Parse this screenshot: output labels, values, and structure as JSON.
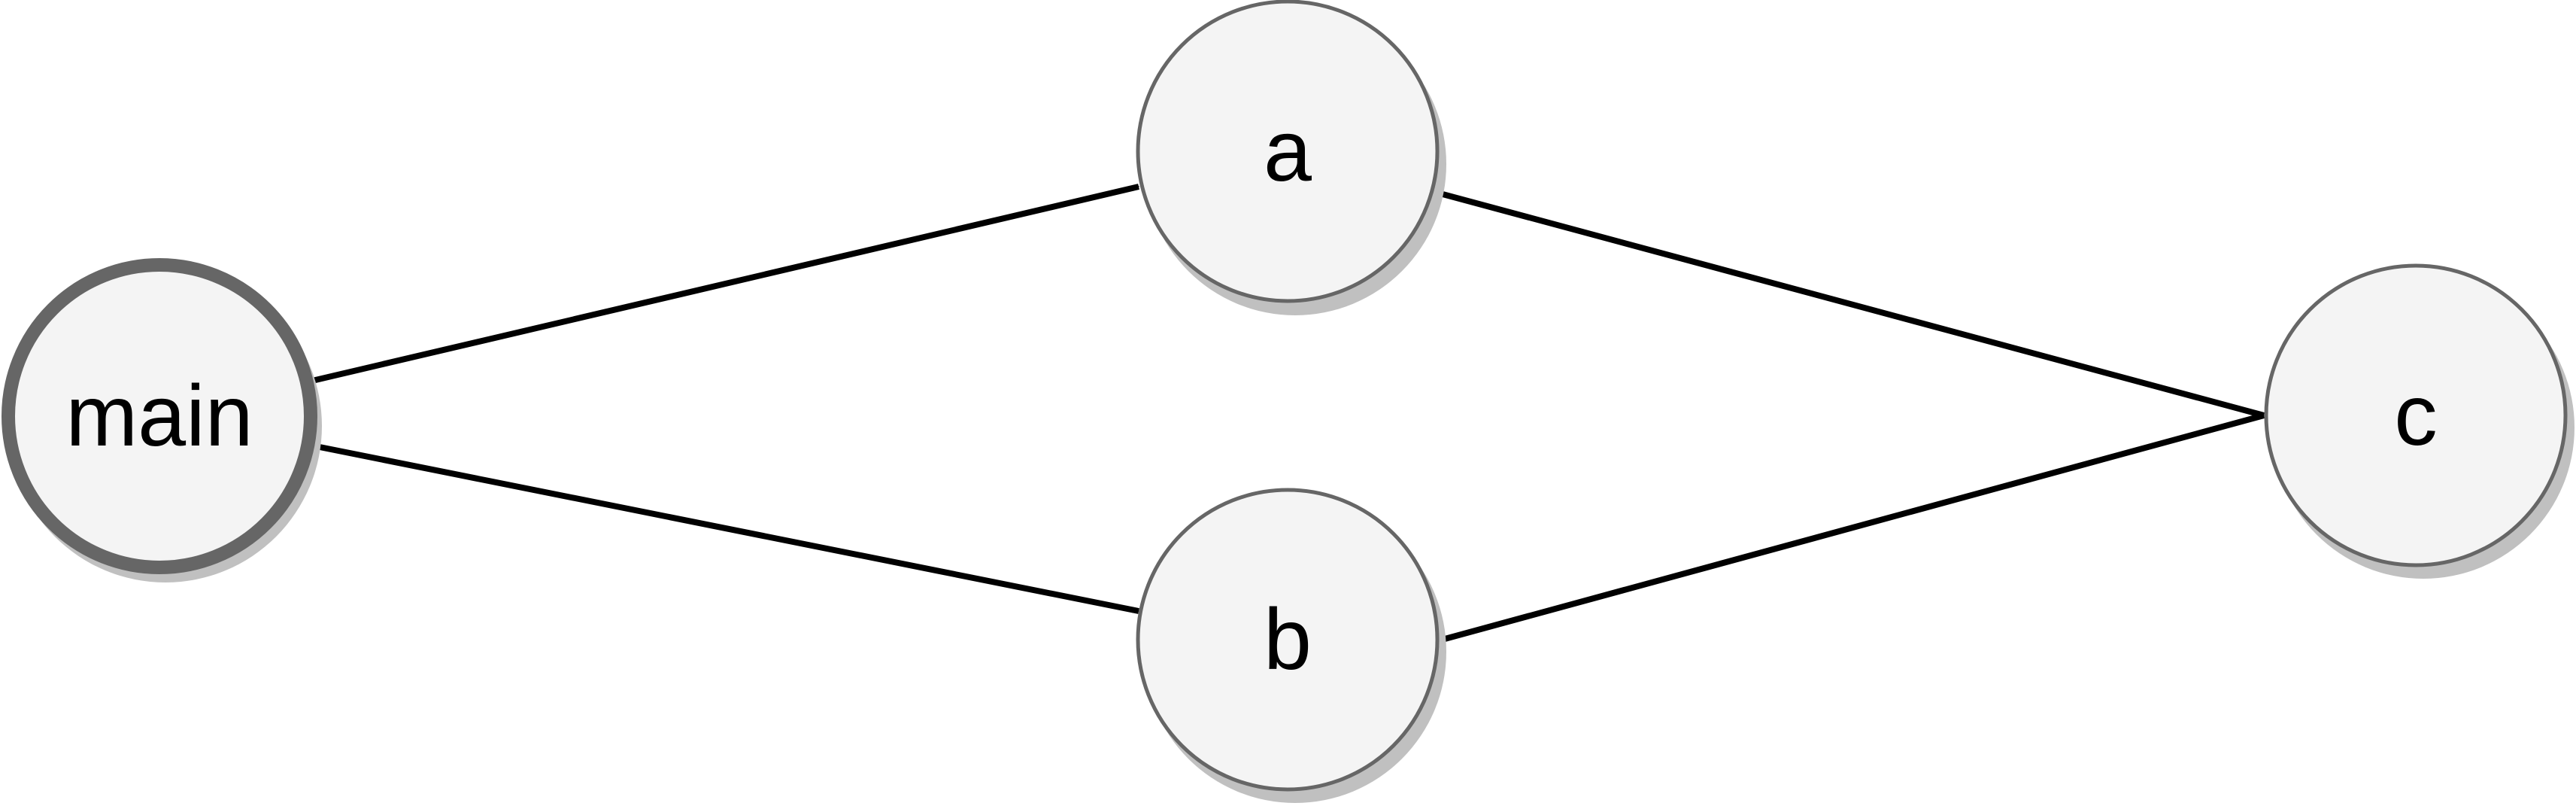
{
  "diagram": {
    "type": "directed-graph",
    "colors": {
      "node_fill": "#f4f4f4",
      "node_stroke": "#666666",
      "node_shadow": "#c0c0c0",
      "edge": "#000000",
      "text": "#000000"
    },
    "nodes": [
      {
        "id": "main",
        "label": "main",
        "role": "entry"
      },
      {
        "id": "a",
        "label": "a"
      },
      {
        "id": "b",
        "label": "b"
      },
      {
        "id": "c",
        "label": "c"
      }
    ],
    "edges": [
      {
        "from": "main",
        "to": "a"
      },
      {
        "from": "main",
        "to": "b"
      },
      {
        "from": "a",
        "to": "c"
      },
      {
        "from": "b",
        "to": "c"
      }
    ]
  }
}
